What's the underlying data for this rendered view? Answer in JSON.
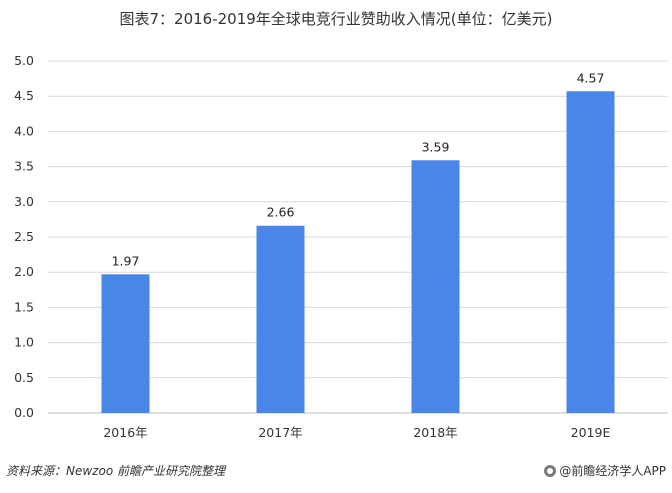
{
  "chart_data": {
    "type": "bar",
    "title": "图表7：2016-2019年全球电竞行业赞助收入情况(单位：亿美元)",
    "categories": [
      "2016年",
      "2017年",
      "2018年",
      "2019E"
    ],
    "values": [
      1.97,
      2.66,
      3.59,
      4.57
    ],
    "data_labels": [
      "1.97",
      "2.66",
      "3.59",
      "4.57"
    ],
    "y_ticks": [
      "0.0",
      "0.5",
      "1.0",
      "1.5",
      "2.0",
      "2.5",
      "3.0",
      "3.5",
      "4.0",
      "4.5",
      "5.0"
    ],
    "ylim": [
      0,
      5
    ],
    "xlabel": "",
    "ylabel": "",
    "grid": true,
    "legend": "none",
    "bar_color": "#4a86e8",
    "grid_color": "#d9d9d9"
  },
  "footer": {
    "source": "资料来源：Newzoo 前瞻产业研究院整理",
    "brand": "@前瞻经济学人APP"
  }
}
